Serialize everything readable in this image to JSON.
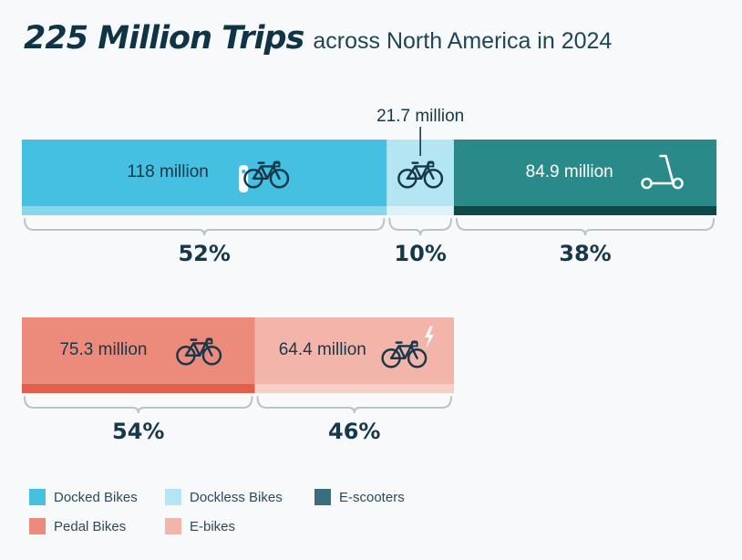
{
  "title": {
    "main": "225 Million Trips",
    "sub": "across North America in 2024"
  },
  "colors": {
    "docked": "#45c0e0",
    "docked_strip": "#86d6ec",
    "dockless": "#b3e5f2",
    "dockless_strip": "#dbf2f9",
    "escooter": "#2a8a8a",
    "escooter_strip": "#0e4848",
    "pedal": "#ec8b7c",
    "pedal_strip": "#e35f4b",
    "ebike": "#f3b5aa",
    "ebike_strip": "#f6d0c7",
    "text_dark": "#17384a",
    "bracket": "#b7c3c9",
    "legend_docked": "#45c0e0",
    "legend_dockless": "#b3e5f2",
    "legend_escooter": "#3b6e7c",
    "legend_pedal": "#ec8b7c",
    "legend_ebike": "#f3b5aa"
  },
  "chart_data": [
    {
      "type": "bar",
      "orientation": "horizontal-stacked-100",
      "title": "225 Million Trips across North America in 2024",
      "categories": [
        "Docked Bikes",
        "Dockless Bikes",
        "E-scooters"
      ],
      "values": [
        118,
        21.7,
        84.9
      ],
      "value_labels": [
        "118 million",
        "21.7 million",
        "84.9 million"
      ],
      "percent_labels": [
        "52%",
        "10%",
        "38%"
      ],
      "icons": [
        "docked-bike-icon",
        "bicycle-icon",
        "scooter-icon"
      ],
      "units": "million trips"
    },
    {
      "type": "bar",
      "orientation": "horizontal-stacked-100",
      "title": "",
      "categories": [
        "Pedal Bikes",
        "E-bikes"
      ],
      "values": [
        75.3,
        64.4
      ],
      "value_labels": [
        "75.3 million",
        "64.4 million"
      ],
      "percent_labels": [
        "54%",
        "46%"
      ],
      "icons": [
        "bicycle-icon",
        "electric-bicycle-icon"
      ],
      "units": "million trips"
    }
  ],
  "legend": {
    "items": [
      {
        "label": "Docked Bikes",
        "color_key": "legend_docked"
      },
      {
        "label": "Dockless Bikes",
        "color_key": "legend_dockless"
      },
      {
        "label": "E-scooters",
        "color_key": "legend_escooter"
      },
      {
        "label": "Pedal Bikes",
        "color_key": "legend_pedal"
      },
      {
        "label": "E-bikes",
        "color_key": "legend_ebike"
      }
    ]
  }
}
